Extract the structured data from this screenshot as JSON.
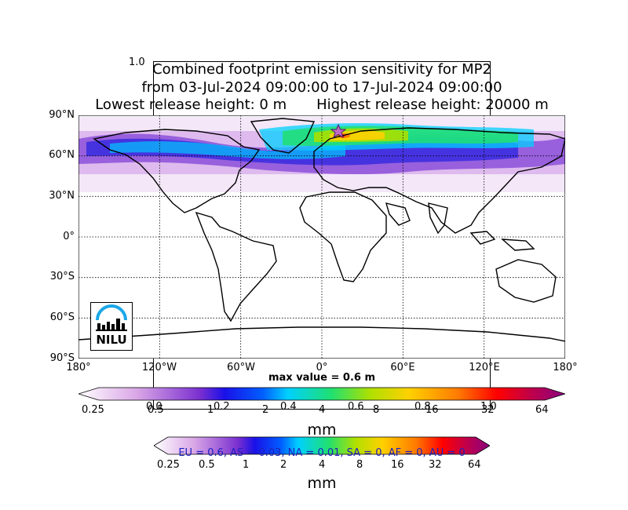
{
  "ghost_axis_label": "1.0",
  "title": {
    "line1": "Combined footprint emission sensitivity for MP2",
    "line2": "from 03-Jul-2024 09:00:00 to 17-Jul-2024 09:00:00",
    "line3_left": "Lowest release height: 0 m",
    "line3_right": "Highest release height: 20000 m"
  },
  "map": {
    "lat_labels": [
      "90°N",
      "60°N",
      "30°N",
      "0°",
      "30°S",
      "60°S",
      "90°S"
    ],
    "lon_labels": [
      "180°",
      "120°W",
      "60°W",
      "0°",
      "60°E",
      "120°E",
      "180°"
    ],
    "max_value": "max value = 0.6 m",
    "logo_text": "NILU",
    "marker_icon": "star-icon"
  },
  "colorbar1": {
    "ticks": [
      "0.25",
      "0.5",
      "1",
      "2",
      "4",
      "8",
      "16",
      "32",
      "64"
    ],
    "ghost_ticks": [
      "0.0",
      "0.2",
      "0.4",
      "0.6",
      "0.8",
      "1.0"
    ],
    "unit": "mm"
  },
  "colorbar2": {
    "ticks": [
      "0.25",
      "0.5",
      "1",
      "2",
      "4",
      "8",
      "16",
      "32",
      "64"
    ],
    "unit": "mm",
    "region_text": "EU = 0.6,  AS = 0.03,  NA = 0.01,  SA = 0,  AF = 0,  AU = 0"
  },
  "colors": {
    "scale": [
      "#ffffff",
      "#d9a6e6",
      "#9a4dd1",
      "#3b1bd6",
      "#0000ff",
      "#00c8ff",
      "#20e070",
      "#a8e000",
      "#ffd000",
      "#ff7a00",
      "#ff0000",
      "#c0004a",
      "#8a0080"
    ]
  }
}
